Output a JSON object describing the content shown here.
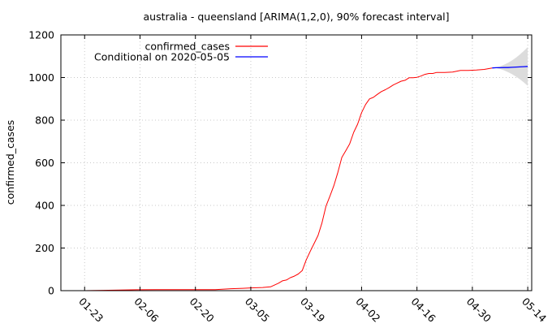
{
  "chart_data": {
    "type": "line",
    "title": "australia - queensland [ARIMA(1,2,0), 90% forecast interval]",
    "xlabel": "",
    "ylabel": "confirmed_cases",
    "ylim": [
      0,
      1200
    ],
    "xlim": [
      "2020-01-17",
      "2020-05-15"
    ],
    "x_tick_labels": [
      "01-23",
      "02-06",
      "02-20",
      "03-05",
      "03-19",
      "04-02",
      "04-16",
      "04-30",
      "05-14"
    ],
    "x_tick_dates": [
      "2020-01-23",
      "2020-02-06",
      "2020-02-20",
      "2020-03-05",
      "2020-03-19",
      "2020-04-02",
      "2020-04-16",
      "2020-04-30",
      "2020-05-14"
    ],
    "y_ticks": [
      0,
      200,
      400,
      600,
      800,
      1000,
      1200
    ],
    "grid": true,
    "legend_position": "top-left",
    "series": [
      {
        "name": "confirmed_cases",
        "color": "#ff0000",
        "x": [
          "2020-01-23",
          "2020-01-26",
          "2020-01-29",
          "2020-02-01",
          "2020-02-05",
          "2020-02-10",
          "2020-02-15",
          "2020-02-20",
          "2020-02-25",
          "2020-02-29",
          "2020-03-03",
          "2020-03-05",
          "2020-03-08",
          "2020-03-10",
          "2020-03-12",
          "2020-03-13",
          "2020-03-14",
          "2020-03-15",
          "2020-03-16",
          "2020-03-17",
          "2020-03-18",
          "2020-03-19",
          "2020-03-20",
          "2020-03-21",
          "2020-03-22",
          "2020-03-23",
          "2020-03-24",
          "2020-03-25",
          "2020-03-26",
          "2020-03-27",
          "2020-03-28",
          "2020-03-29",
          "2020-03-30",
          "2020-03-31",
          "2020-04-01",
          "2020-04-02",
          "2020-04-03",
          "2020-04-04",
          "2020-04-05",
          "2020-04-06",
          "2020-04-07",
          "2020-04-08",
          "2020-04-09",
          "2020-04-10",
          "2020-04-11",
          "2020-04-12",
          "2020-04-13",
          "2020-04-14",
          "2020-04-15",
          "2020-04-16",
          "2020-04-17",
          "2020-04-18",
          "2020-04-19",
          "2020-04-20",
          "2020-04-21",
          "2020-04-23",
          "2020-04-25",
          "2020-04-27",
          "2020-04-29",
          "2020-05-01",
          "2020-05-03",
          "2020-05-05"
        ],
        "values": [
          0,
          1,
          2,
          3,
          4,
          5,
          5,
          5,
          5,
          9,
          11,
          13,
          15,
          18,
          35,
          46,
          50,
          61,
          68,
          78,
          94,
          144,
          184,
          221,
          259,
          319,
          397,
          443,
          493,
          555,
          625,
          656,
          689,
          743,
          781,
          835,
          873,
          900,
          907,
          921,
          934,
          943,
          953,
          965,
          974,
          983,
          987,
          999,
          999,
          1001,
          1007,
          1015,
          1019,
          1019,
          1024,
          1024,
          1026,
          1033,
          1033,
          1035,
          1038,
          1045
        ]
      },
      {
        "name": "Conditional on 2020-05-05",
        "color": "#0000ff",
        "x": [
          "2020-05-05",
          "2020-05-06",
          "2020-05-07",
          "2020-05-08",
          "2020-05-09",
          "2020-05-10",
          "2020-05-11",
          "2020-05-12",
          "2020-05-13",
          "2020-05-14"
        ],
        "values": [
          1045,
          1046,
          1046,
          1047,
          1047,
          1048,
          1049,
          1050,
          1051,
          1052
        ]
      }
    ],
    "forecast_interval": {
      "color": "#dcdcdc",
      "x": [
        "2020-05-05",
        "2020-05-06",
        "2020-05-07",
        "2020-05-08",
        "2020-05-09",
        "2020-05-10",
        "2020-05-11",
        "2020-05-12",
        "2020-05-13",
        "2020-05-14"
      ],
      "upper": [
        1046,
        1048,
        1053,
        1060,
        1069,
        1080,
        1093,
        1108,
        1125,
        1143
      ],
      "lower": [
        1044,
        1044,
        1040,
        1034,
        1025,
        1016,
        1005,
        992,
        977,
        961
      ]
    }
  }
}
